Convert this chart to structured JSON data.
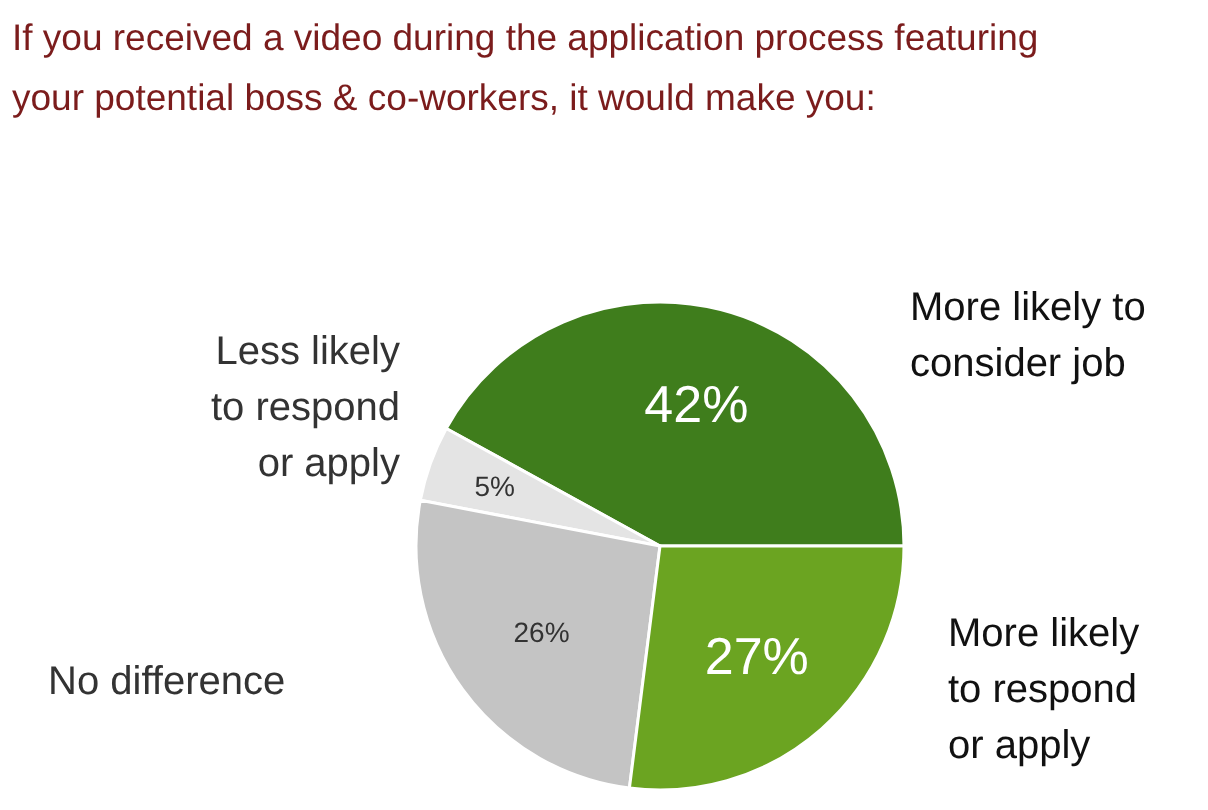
{
  "chart_data": {
    "type": "pie",
    "title": "If you received a video during the application process featuring your potential boss & co-workers, it would make you:",
    "categories": [
      "More likely to consider job",
      "Less likely to respond or apply",
      "No difference",
      "More likely to respond or apply"
    ],
    "values": [
      42,
      5,
      26,
      27
    ],
    "colors": [
      "#3f7d1c",
      "#e4e4e4",
      "#c4c4c4",
      "#6ba421"
    ],
    "value_labels": [
      "42%",
      "5%",
      "26%",
      "27%"
    ],
    "legend": false
  }
}
